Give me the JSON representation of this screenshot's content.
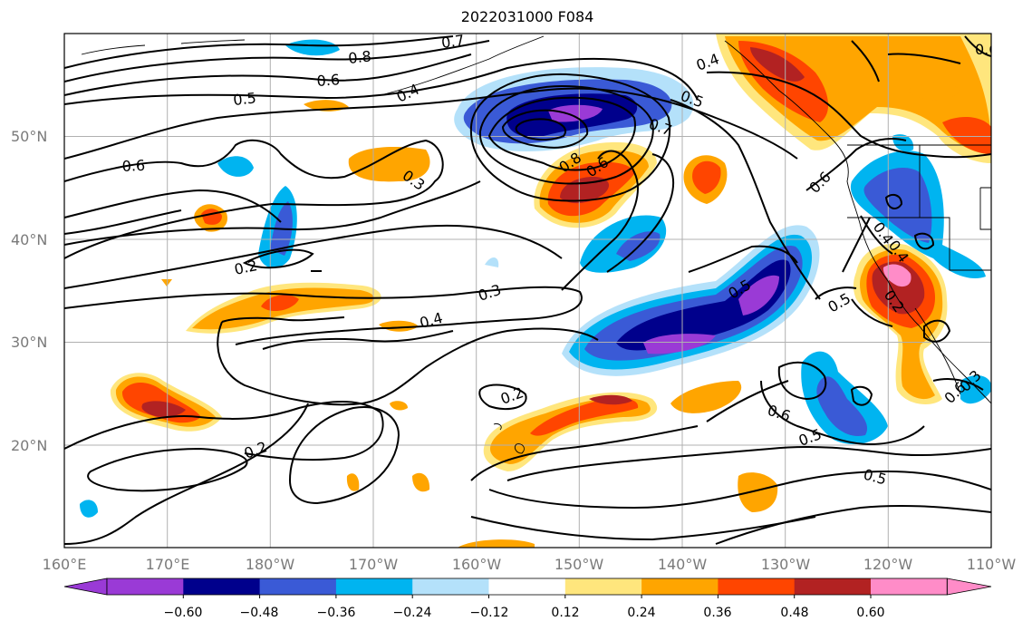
{
  "title": "2022031000 F084",
  "map": {
    "lon_ticks": [
      "160°E",
      "170°E",
      "180°W",
      "170°W",
      "160°W",
      "150°W",
      "140°W",
      "130°W",
      "120°W",
      "110°W"
    ],
    "lat_ticks": [
      "50°N",
      "40°N",
      "30°N",
      "20°N"
    ],
    "grid": true
  },
  "colorbar": {
    "labels": [
      "−0.60",
      "−0.48",
      "−0.36",
      "−0.24",
      "−0.12",
      "0.12",
      "0.24",
      "0.36",
      "0.48",
      "0.60"
    ],
    "colors": [
      "#9a3ad6",
      "#00008c",
      "#3a5ad6",
      "#00b4f0",
      "#b4e1fa",
      "#ffffff",
      "#ffe67d",
      "#ffa500",
      "#ff4500",
      "#b22222",
      "#ff8cc8"
    ],
    "extend": "both"
  },
  "contour_labels": [
    "0.7",
    "0.8",
    "0.6",
    "0.5",
    "0.4",
    "0.5",
    "0.7",
    "0.8",
    "0.6",
    "0.6",
    "0.3",
    "0.4",
    "0.6",
    "0.4",
    "0.2",
    "0.3",
    "0.4",
    "0.5",
    "0.2",
    "0.2",
    "0.6",
    "0.5",
    "0.5",
    "0.5",
    "0.6",
    "0.3",
    "0.2",
    "0.4",
    "0.6"
  ]
}
